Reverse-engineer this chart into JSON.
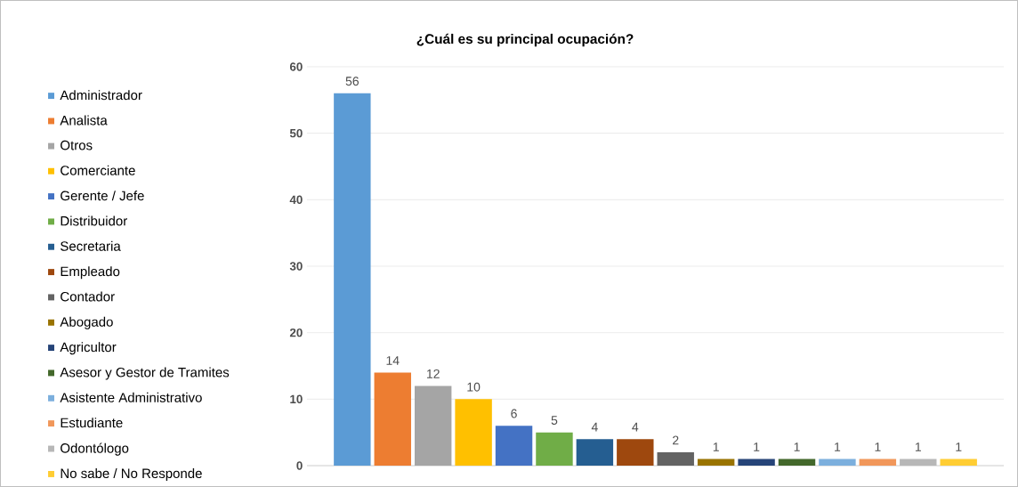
{
  "chart_data": {
    "type": "bar",
    "title": "¿Cuál es su principal ocupación?",
    "categories": [
      null
    ],
    "series": [
      {
        "name": "Administrador",
        "color": "#5b9bd5",
        "values": [
          56
        ]
      },
      {
        "name": "Analista",
        "color": "#ed7d31",
        "values": [
          14
        ]
      },
      {
        "name": "Otros",
        "color": "#a5a5a5",
        "values": [
          12
        ]
      },
      {
        "name": "Comerciante",
        "color": "#ffc000",
        "values": [
          10
        ]
      },
      {
        "name": "Gerente / Jefe",
        "color": "#4472c4",
        "values": [
          6
        ]
      },
      {
        "name": "Distribuidor",
        "color": "#70ad47",
        "values": [
          5
        ]
      },
      {
        "name": "Secretaria",
        "color": "#255e91",
        "values": [
          4
        ]
      },
      {
        "name": "Empleado",
        "color": "#9e480e",
        "values": [
          4
        ]
      },
      {
        "name": "Contador",
        "color": "#636363",
        "values": [
          2
        ]
      },
      {
        "name": "Abogado",
        "color": "#997300",
        "values": [
          1
        ]
      },
      {
        "name": "Agricultor",
        "color": "#264478",
        "values": [
          1
        ]
      },
      {
        "name": "Asesor y Gestor de Tramites",
        "color": "#43682b",
        "values": [
          1
        ]
      },
      {
        "name": "Asistente Administrativo",
        "color": "#7cafdd",
        "values": [
          1
        ]
      },
      {
        "name": "Estudiante",
        "color": "#f1975a",
        "values": [
          1
        ]
      },
      {
        "name": "Odontólogo",
        "color": "#b7b7b7",
        "values": [
          1
        ]
      },
      {
        "name": "No sabe / No Responde",
        "color": "#ffcd33",
        "values": [
          1
        ]
      }
    ],
    "ylim": [
      0,
      60
    ],
    "yticks": [
      0,
      10,
      20,
      30,
      40,
      50,
      60
    ],
    "grid": "y",
    "legend": "left",
    "data_labels": true
  }
}
